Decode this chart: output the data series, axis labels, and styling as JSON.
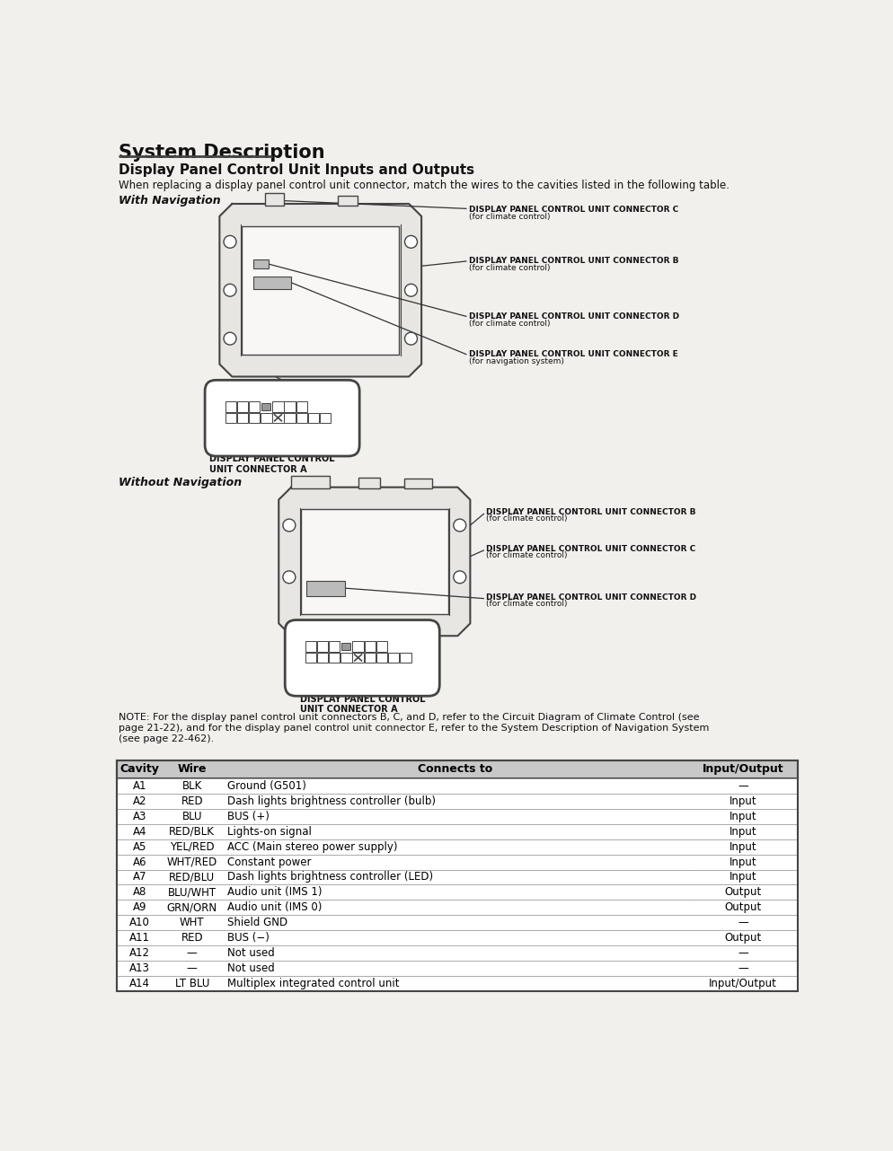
{
  "title": "System Description",
  "subtitle": "Display Panel Control Unit Inputs and Outputs",
  "description": "When replacing a display panel control unit connector, match the wires to the cavities listed in the following table.",
  "with_nav_label": "With Navigation",
  "without_nav_label": "Without Navigation",
  "note_text": "NOTE: For the display panel control unit connectors B, C, and D, refer to the Circuit Diagram of Climate Control (see\npage 21-22), and for the display panel control unit connector E, refer to the System Description of Navigation System\n(see page 22-462).",
  "connector_labels_with_nav": [
    [
      "DISPLAY PANEL CONTROL UNIT CONNECTOR C",
      "(for climate control)"
    ],
    [
      "DISPLAY PANEL CONTROL UNIT CONNECTOR B",
      "(for climate control)"
    ],
    [
      "DISPLAY PANEL CONTROL UNIT CONNECTOR D",
      "(for climate control)"
    ],
    [
      "DISPLAY PANEL CONTROL UNIT CONNECTOR E",
      "(for navigation system)"
    ]
  ],
  "connector_labels_without_nav": [
    [
      "DISPLAY PANEL CONTORL UNIT CONNECTOR B",
      "(for climate control)"
    ],
    [
      "DISPLAY PANEL CONTROL UNIT CONNECTOR C",
      "(for climate control)"
    ],
    [
      "DISPLAY PANEL CONTROL UNIT CONNECTOR D",
      "(for climate control)"
    ]
  ],
  "connector_a_label": "DISPLAY PANEL CONTROL\nUNIT CONNECTOR A",
  "table_headers": [
    "Cavity",
    "Wire",
    "Connects to",
    "Input/Output"
  ],
  "table_rows": [
    [
      "A1",
      "BLK",
      "Ground (G501)",
      "—"
    ],
    [
      "A2",
      "RED",
      "Dash lights brightness controller (bulb)",
      "Input"
    ],
    [
      "A3",
      "BLU",
      "BUS (+)",
      "Input"
    ],
    [
      "A4",
      "RED/BLK",
      "Lights-on signal",
      "Input"
    ],
    [
      "A5",
      "YEL/RED",
      "ACC (Main stereo power supply)",
      "Input"
    ],
    [
      "A6",
      "WHT/RED",
      "Constant power",
      "Input"
    ],
    [
      "A7",
      "RED/BLU",
      "Dash lights brightness controller (LED)",
      "Input"
    ],
    [
      "A8",
      "BLU/WHT",
      "Audio unit (IMS 1)",
      "Output"
    ],
    [
      "A9",
      "GRN/ORN",
      "Audio unit (IMS 0)",
      "Output"
    ],
    [
      "A10",
      "WHT",
      "Shield GND",
      "—"
    ],
    [
      "A11",
      "RED",
      "BUS (−)",
      "Output"
    ],
    [
      "A12",
      "—",
      "Not used",
      "—"
    ],
    [
      "A13",
      "—",
      "Not used",
      "—"
    ],
    [
      "A14",
      "LT BLU",
      "Multiplex integrated control unit",
      "Input/Output"
    ]
  ],
  "bg_color": "#f2f0ec",
  "panel_fill": "#e8e6e2",
  "panel_edge": "#444444",
  "inner_fill": "#f8f7f5",
  "text_color": "#111111"
}
